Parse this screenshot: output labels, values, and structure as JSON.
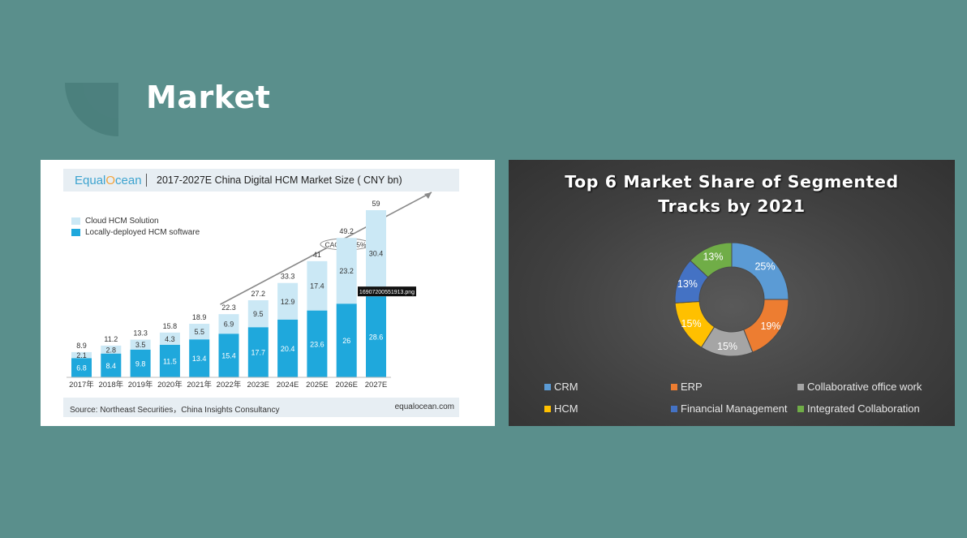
{
  "page": {
    "title": "Market"
  },
  "chart_data": [
    {
      "type": "bar",
      "stacked": true,
      "brand": {
        "prefix": "Equal",
        "o": "O",
        "suffix": "cean"
      },
      "title": "2017-2027E China Digital HCM Market Size ( CNY bn)",
      "categories": [
        "2017年",
        "2018年",
        "2019年",
        "2020年",
        "2021年",
        "2022年",
        "2023E",
        "2024E",
        "2025E",
        "2026E",
        "2027E"
      ],
      "series": [
        {
          "name": "Locally-deployed HCM software",
          "color": "#1fa8dc",
          "values": [
            6.8,
            8.4,
            9.8,
            11.5,
            13.4,
            15.4,
            17.7,
            20.4,
            23.6,
            26.0,
            28.6
          ]
        },
        {
          "name": "Cloud HCM Solution",
          "color": "#cbe8f5",
          "values": [
            2.1,
            2.8,
            3.5,
            4.3,
            5.5,
            6.9,
            9.5,
            12.9,
            17.4,
            23.2,
            30.4
          ]
        }
      ],
      "totals": [
        8.9,
        11.2,
        13.3,
        15.8,
        18.9,
        22.3,
        27.2,
        33.3,
        41.0,
        49.2,
        59.0
      ],
      "annotation": "CAGR:21.5%",
      "tooltip": "16907200551913.png",
      "source": "Source: Northeast Securities，China Insights Consultancy",
      "site": "equalocean.com"
    },
    {
      "type": "pie",
      "donut": true,
      "title_lines": [
        "Top 6 Market Share of Segmented",
        "Tracks by 2021"
      ],
      "labels": [
        "CRM",
        "ERP",
        "Collaborative office work",
        "HCM",
        "Financial Management",
        "Integrated Collaboration"
      ],
      "values": [
        25,
        19,
        15,
        15,
        13,
        13
      ],
      "value_labels": [
        "25%",
        "19%",
        "15%",
        "15%",
        "13%",
        "13%"
      ],
      "colors": [
        "#5b9bd5",
        "#ed7d31",
        "#a5a5a5",
        "#ffc000",
        "#4472c4",
        "#70ad47"
      ],
      "legend_position": "bottom"
    }
  ]
}
